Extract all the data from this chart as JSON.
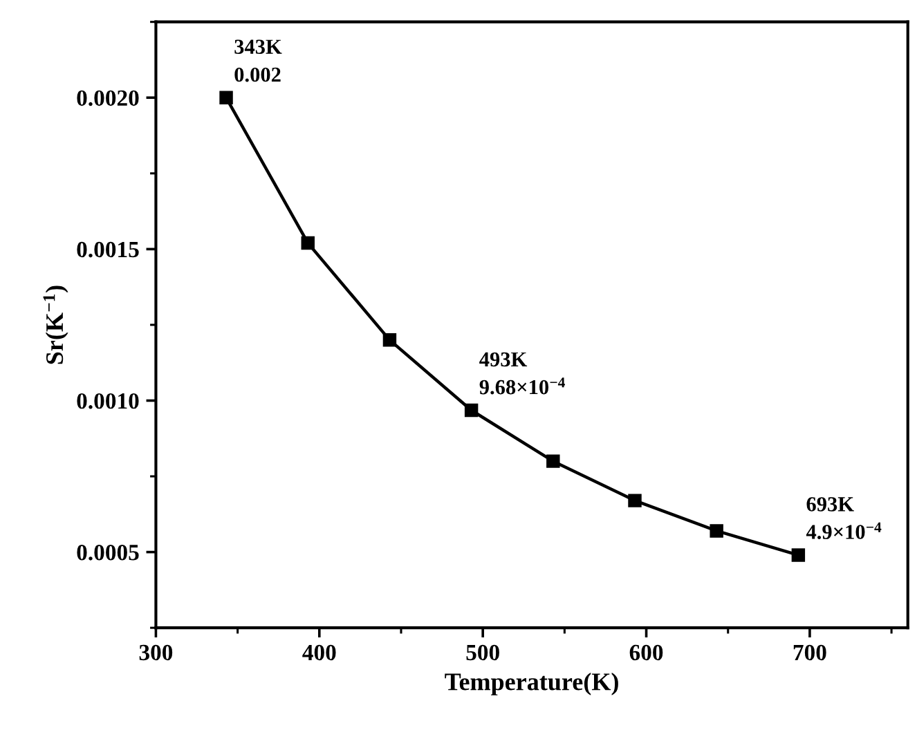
{
  "chart_data": {
    "type": "line",
    "xlabel": "Temperature(K)",
    "ylabel": "Sr(K$^{−1}$)",
    "x": [
      343,
      393,
      443,
      493,
      543,
      593,
      643,
      693
    ],
    "series": [
      {
        "color": "#000000",
        "values": [
          0.002,
          0.00152,
          0.0012,
          0.000968,
          0.0008,
          0.00067,
          0.00057,
          0.00049
        ]
      }
    ],
    "marker": "square",
    "line_style": "solid",
    "grid": false,
    "xlim": [
      300,
      760
    ],
    "xticks": [
      300,
      400,
      500,
      600,
      700
    ],
    "ylim": [
      0.00025,
      0.00225
    ],
    "yticks": [
      {
        "value": 0.0005,
        "label": "0.0005"
      },
      {
        "value": 0.001,
        "label": "0.0010"
      },
      {
        "value": 0.0015,
        "label": "0.0015"
      },
      {
        "value": 0.002,
        "label": "0.0020"
      }
    ],
    "annotations": [
      {
        "text": "343K\n0.002",
        "x": 343,
        "y": 0.002
      },
      {
        "text": "493K\n9.68×10$^{−4}$",
        "x": 493,
        "y": 0.000968
      },
      {
        "text": "693K\n4.9×10$^{−4}$",
        "x": 693,
        "y": 0.00049
      }
    ]
  }
}
